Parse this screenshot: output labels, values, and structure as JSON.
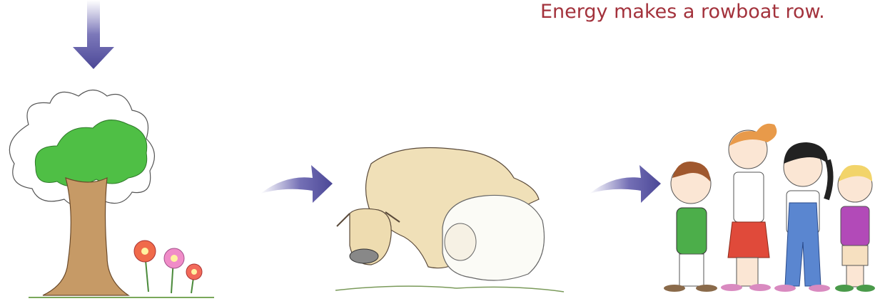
{
  "caption": "Energy makes a rowboat row."
}
